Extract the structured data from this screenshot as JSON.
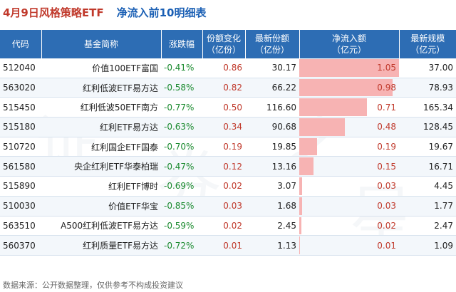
{
  "header": {
    "title": "4月9日风格策略ETF",
    "subtitle": "净流入前10明细表"
  },
  "columns": [
    {
      "line1": "代码",
      "line2": ""
    },
    {
      "line1": "基金简称",
      "line2": ""
    },
    {
      "line1": "涨跌幅",
      "line2": ""
    },
    {
      "line1": "份额变化",
      "line2": "（亿份）"
    },
    {
      "line1": "最新份额",
      "line2": "（亿份）"
    },
    {
      "line1": "净流入额",
      "line2": "（亿元）"
    },
    {
      "line1": "最新规模",
      "line2": "（亿元）"
    }
  ],
  "rows": [
    {
      "code": "512040",
      "name": "价值100ETF富国",
      "change": "-0.41%",
      "share_change": "0.86",
      "latest_share": "30.17",
      "net_inflow": "1.05",
      "inflow_fraction": 1.0,
      "scale": "37.00"
    },
    {
      "code": "563020",
      "name": "红利低波ETF易方达",
      "change": "-0.58%",
      "share_change": "0.82",
      "latest_share": "66.22",
      "net_inflow": "0.98",
      "inflow_fraction": 0.933,
      "scale": "78.93"
    },
    {
      "code": "515450",
      "name": "红利低波50ETF南方",
      "change": "-0.77%",
      "share_change": "0.50",
      "latest_share": "116.60",
      "net_inflow": "0.71",
      "inflow_fraction": 0.676,
      "scale": "165.34"
    },
    {
      "code": "515180",
      "name": "红利ETF易方达",
      "change": "-0.63%",
      "share_change": "0.34",
      "latest_share": "90.68",
      "net_inflow": "0.48",
      "inflow_fraction": 0.457,
      "scale": "128.45"
    },
    {
      "code": "510720",
      "name": "红利国企ETF国泰",
      "change": "-0.70%",
      "share_change": "0.19",
      "latest_share": "19.85",
      "net_inflow": "0.19",
      "inflow_fraction": 0.181,
      "scale": "19.67"
    },
    {
      "code": "561580",
      "name": "央企红利ETF华泰柏瑞",
      "change": "-0.47%",
      "share_change": "0.12",
      "latest_share": "13.16",
      "net_inflow": "0.15",
      "inflow_fraction": 0.143,
      "scale": "16.71"
    },
    {
      "code": "515890",
      "name": "红利ETF博时",
      "change": "-0.69%",
      "share_change": "0.02",
      "latest_share": "3.07",
      "net_inflow": "0.03",
      "inflow_fraction": 0.029,
      "scale": "4.45"
    },
    {
      "code": "510030",
      "name": "价值ETF华宝",
      "change": "-0.85%",
      "share_change": "0.03",
      "latest_share": "1.68",
      "net_inflow": "0.03",
      "inflow_fraction": 0.029,
      "scale": "1.77"
    },
    {
      "code": "563510",
      "name": "A500红利低波ETF易方达",
      "change": "-0.59%",
      "share_change": "0.02",
      "latest_share": "2.45",
      "net_inflow": "0.02",
      "inflow_fraction": 0.019,
      "scale": "2.47"
    },
    {
      "code": "560370",
      "name": "红利质量ETF易方达",
      "change": "-0.72%",
      "share_change": "0.01",
      "latest_share": "1.13",
      "net_inflow": "0.01",
      "inflow_fraction": 0.01,
      "scale": "1.09"
    }
  ],
  "colors": {
    "header_bg": "#2d6db4",
    "title_red": "#c0392b",
    "title_blue": "#1a5fb4",
    "negative_green": "#1a8a2e",
    "bar_pink": "#f7b3b3"
  },
  "footnote": "数据来源：公开数据整理，仅供参考不构成投资建议"
}
